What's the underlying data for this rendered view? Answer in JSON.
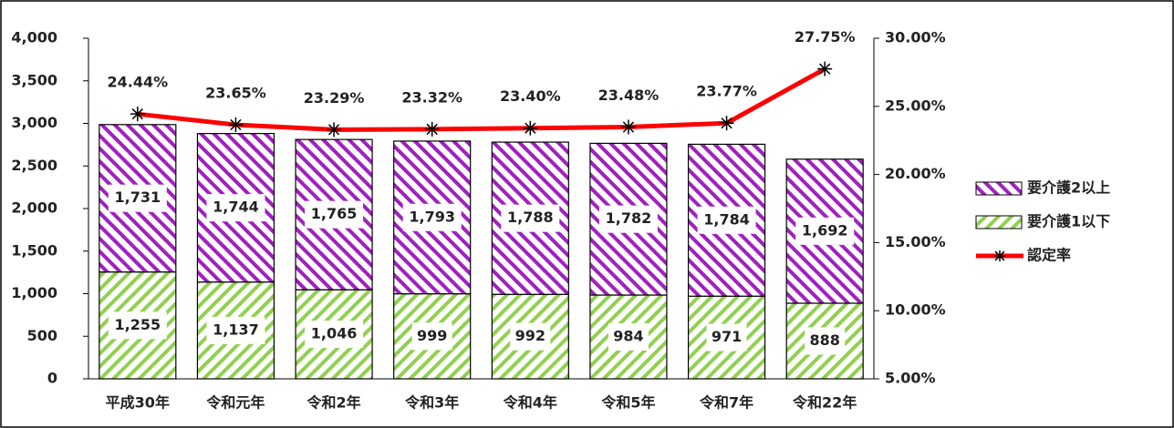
{
  "chart_data": {
    "type": "bar",
    "stacked": true,
    "categories": [
      "平成30年",
      "令和元年",
      "令和2年",
      "令和3年",
      "令和4年",
      "令和5年",
      "令和7年",
      "令和22年"
    ],
    "series": [
      {
        "name": "要介護1以下",
        "color": "#92d050",
        "pattern": "hatch-up",
        "values": [
          1255,
          1137,
          1046,
          999,
          992,
          984,
          971,
          888
        ],
        "value_labels": [
          "1,255",
          "1,137",
          "1,046",
          "999",
          "992",
          "984",
          "971",
          "888"
        ]
      },
      {
        "name": "要介護2以上",
        "color": "#a020c0",
        "pattern": "hatch-down",
        "values": [
          1731,
          1744,
          1765,
          1793,
          1788,
          1782,
          1784,
          1692
        ],
        "value_labels": [
          "1,731",
          "1,744",
          "1,765",
          "1,793",
          "1,788",
          "1,782",
          "1,784",
          "1,692"
        ]
      },
      {
        "name": "認定率",
        "color": "#ff0000",
        "type": "line",
        "axis": "y2",
        "values": [
          24.44,
          23.65,
          23.29,
          23.32,
          23.4,
          23.48,
          23.77,
          27.75
        ],
        "value_labels": [
          "24.44%",
          "23.65%",
          "23.29%",
          "23.32%",
          "23.40%",
          "23.48%",
          "23.77%",
          "27.75%"
        ]
      }
    ],
    "ylim": [
      0,
      4000
    ],
    "yticks": [
      0,
      500,
      {
        "value": 1000,
        "label": "1,000"
      },
      {
        "value": 1500,
        "label": "1,500"
      },
      {
        "value": 2000,
        "label": "2,000"
      },
      {
        "value": 2500,
        "label": "2,500"
      },
      {
        "value": 3000,
        "label": "3,000"
      },
      {
        "value": 3500,
        "label": "3,500"
      },
      {
        "value": 4000,
        "label": "4,000"
      }
    ],
    "y2lim": [
      5,
      30
    ],
    "y2ticks": [
      {
        "value": 5,
        "label": "5.00%"
      },
      {
        "value": 10,
        "label": "10.00%"
      },
      {
        "value": 15,
        "label": "15.00%"
      },
      {
        "value": 20,
        "label": "20.00%"
      },
      {
        "value": 25,
        "label": "25.00%"
      },
      {
        "value": 30,
        "label": "30.00%"
      }
    ],
    "legend": "right"
  }
}
